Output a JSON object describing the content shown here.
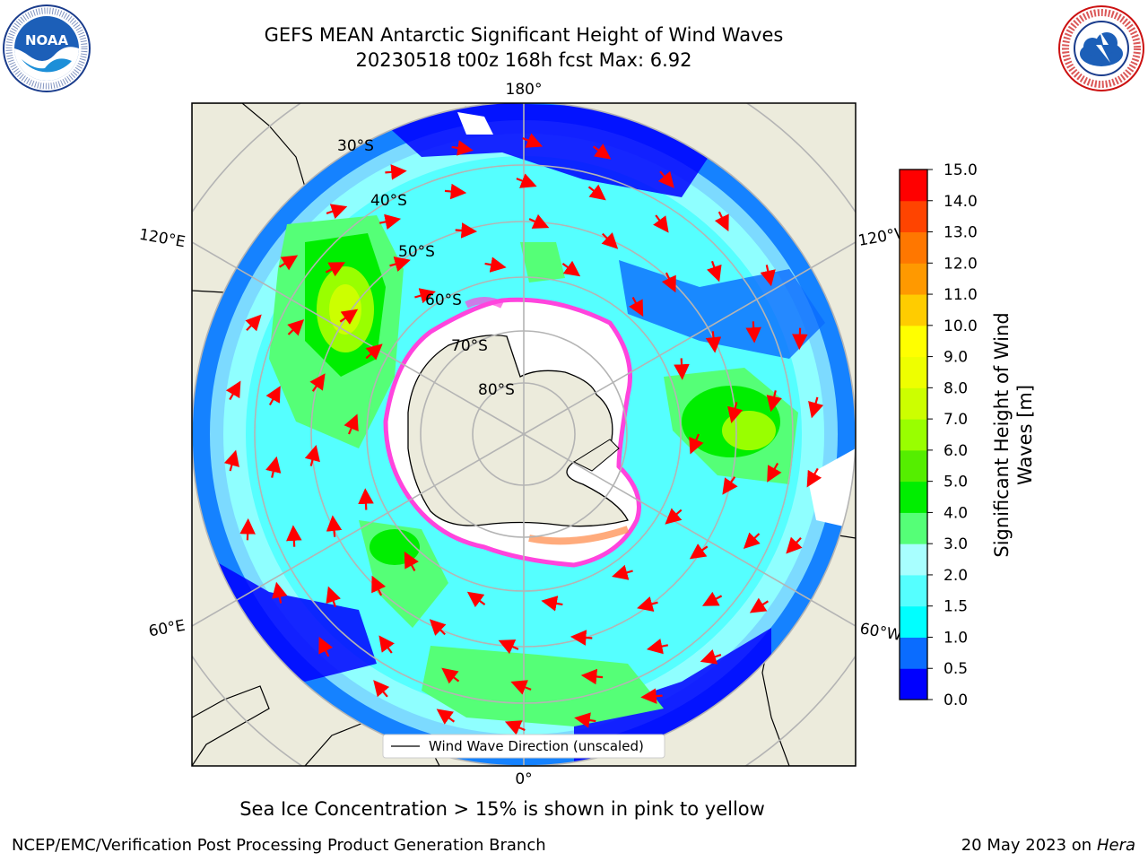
{
  "header": {
    "title_line1": "GEFS MEAN Antarctic Significant Height of Wind Waves",
    "title_line2": "20230518 t00z 168h fcst   Max: 6.92"
  },
  "logos": {
    "left": {
      "icon": "noaa-logo",
      "text": "NOAA",
      "ring_text": "NATIONAL OCEANIC AND ATMOSPHERIC ADMINISTRATION · U.S. DEPARTMENT OF COMMERCE"
    },
    "right": {
      "icon": "nws-logo",
      "ring_text": "NATIONAL WEATHER SERVICE"
    }
  },
  "map": {
    "projection": "south-polar-stereographic",
    "longitude_labels": {
      "top": "180°",
      "bottom": "0°",
      "upper_left": "120°E",
      "upper_right": "120°W",
      "lower_left": "60°E",
      "lower_right": "60°W"
    },
    "latitude_labels": [
      "30°S",
      "40°S",
      "50°S",
      "60°S",
      "70°S",
      "80°S"
    ],
    "legend_label": "Wind Wave Direction (unscaled)",
    "colors": {
      "land": "#ecebdc",
      "coast": "#000000",
      "grid": "#b4b4b4",
      "arrow": "#ff0000",
      "ice_edge": "#ff44dd"
    }
  },
  "colorbar": {
    "label": "Significant Height of Wind Waves [m]",
    "label_line1": "Significant Height of Wind",
    "label_line2": "Waves [m]",
    "ticks": [
      "0.0",
      "0.5",
      "1.0",
      "1.5",
      "2.0",
      "3.0",
      "4.0",
      "5.0",
      "6.0",
      "7.0",
      "8.0",
      "9.0",
      "10.0",
      "11.0",
      "12.0",
      "13.0",
      "14.0",
      "15.0"
    ],
    "colors": [
      "#0000ff",
      "#0a6cff",
      "#00ffff",
      "#55ffff",
      "#a8ffff",
      "#55ff77",
      "#00ee00",
      "#55ee00",
      "#99ff00",
      "#ccff00",
      "#eeff00",
      "#ffff00",
      "#ffcc00",
      "#ff9900",
      "#ff7700",
      "#ff4400",
      "#ff0000"
    ]
  },
  "footer": {
    "sea_ice_note": "Sea Ice Concentration > 15% is shown in pink to yellow",
    "credit": "NCEP/EMC/Verification Post Processing Product Generation Branch",
    "date": "20 May 2023 on",
    "machine": "Hera"
  }
}
